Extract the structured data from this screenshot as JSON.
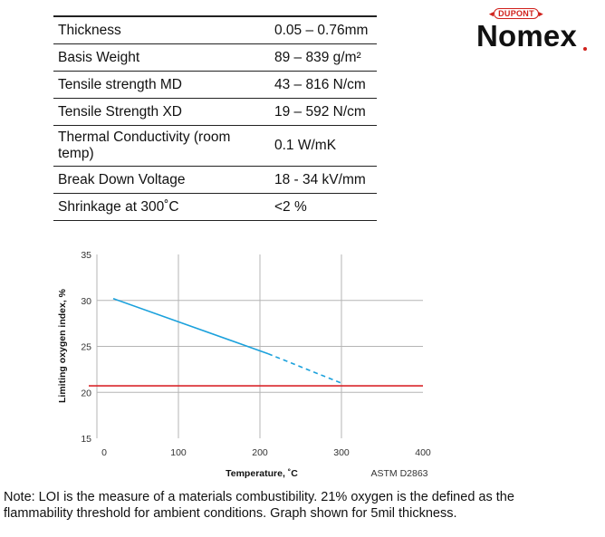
{
  "properties": [
    {
      "name": "Thickness",
      "value": "0.05 – 0.76mm"
    },
    {
      "name": "Basis Weight",
      "value": "89 – 839 g/m²"
    },
    {
      "name": "Tensile strength MD",
      "value": "43 – 816 N/cm"
    },
    {
      "name": "Tensile Strength XD",
      "value": "19 – 592 N/cm"
    },
    {
      "name": "Thermal Conductivity (room temp)",
      "value": "0.1 W/mK"
    },
    {
      "name": "Break Down Voltage",
      "value": "18 - 34 kV/mm"
    },
    {
      "name": "Shrinkage at 300˚C",
      "value": "<2 %"
    }
  ],
  "logo": {
    "brand": "DUPONT",
    "product": "Nomex"
  },
  "chart_data": {
    "type": "line",
    "xlabel": "Temperature, ˚C",
    "ylabel": "Limiting oxygen index, %",
    "xlim": [
      0,
      400
    ],
    "ylim": [
      15,
      35
    ],
    "x_ticks": [
      "0",
      "100",
      "200",
      "300",
      "400"
    ],
    "y_ticks": [
      "35",
      "30",
      "25",
      "20",
      "15"
    ],
    "grid": true,
    "annotation": "ASTM D2863",
    "series": [
      {
        "style": "solid",
        "color": "#1ba1dc",
        "x": [
          20,
          210
        ],
        "y": [
          30.2,
          24.2
        ]
      },
      {
        "style": "dashed",
        "color": "#1ba1dc",
        "x": [
          210,
          300
        ],
        "y": [
          24.2,
          21.0
        ]
      },
      {
        "style": "solid",
        "color": "#d9262b",
        "x": [
          -10,
          400
        ],
        "y": [
          20.7,
          20.7
        ]
      }
    ]
  },
  "note": "Note: LOI is the measure of a materials combustibility. 21% oxygen is the defined as the flammability threshold for ambient conditions. Graph shown for 5mil thickness."
}
